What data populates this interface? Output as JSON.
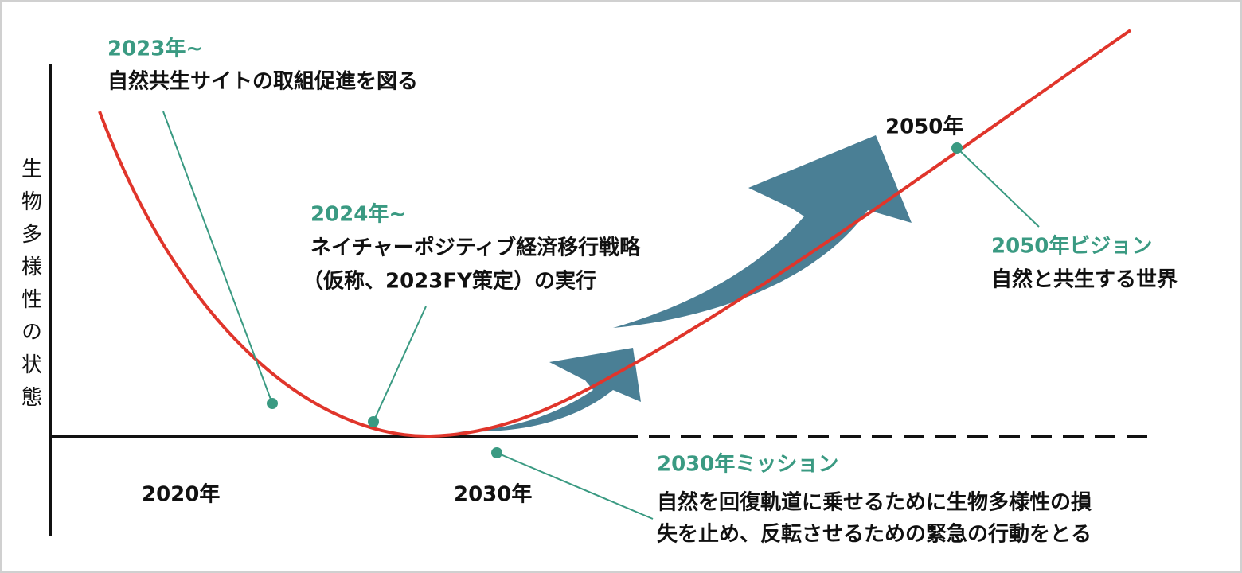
{
  "y_axis_label": "生物多様性の状態",
  "x_labels": [
    "2020年",
    "2030年"
  ],
  "label_2050": "2050年",
  "annotations": [
    {
      "heading": "2023年~",
      "lines": [
        "自然共生サイトの取組促進を図る"
      ]
    },
    {
      "heading": "2024年~",
      "lines": [
        "ネイチャーポジティブ経済移行戦略",
        "（仮称、2023FY策定）の実行"
      ]
    },
    {
      "heading": "2050年ビジョン",
      "lines": [
        "自然と共生する世界"
      ]
    },
    {
      "heading": "2030年ミッション",
      "lines": [
        "自然を回復軌道に乗せるために生物多様性の損",
        "失を止め、反転させるための緊急の行動をとる"
      ]
    }
  ]
}
